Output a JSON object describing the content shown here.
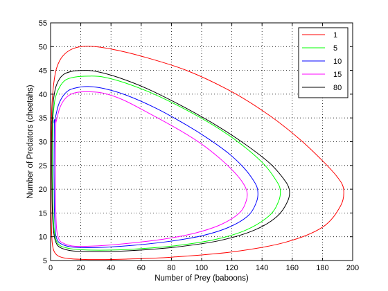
{
  "chart_data": {
    "type": "line",
    "title": "",
    "xlabel": "Number of Prey (baboons)",
    "ylabel": "Number of Predators (cheetahs)",
    "xlim": [
      0,
      200
    ],
    "ylim": [
      5,
      55
    ],
    "xticks": [
      0,
      20,
      40,
      60,
      80,
      100,
      120,
      140,
      160,
      180,
      200
    ],
    "yticks": [
      5,
      10,
      15,
      20,
      25,
      30,
      35,
      40,
      45,
      50,
      55
    ],
    "grid": true,
    "grid_style": "dotted",
    "legend_position": "top-right",
    "series": [
      {
        "name": "1",
        "color": "#ff0000",
        "x": [
          0.3,
          0.8,
          2,
          4,
          8,
          15,
          25,
          40,
          60,
          90,
          120,
          145,
          165,
          180,
          190,
          194,
          192,
          180,
          155,
          120,
          80,
          50,
          30,
          20,
          12,
          7,
          4,
          2,
          1,
          0.5,
          0.3
        ],
        "y": [
          27,
          37,
          42,
          45.5,
          48,
          49.6,
          50.1,
          49.5,
          48,
          45,
          40.5,
          35.5,
          30.5,
          26,
          22.5,
          20,
          16.5,
          12,
          8.8,
          6.8,
          5.7,
          5.3,
          5.2,
          5.25,
          5.4,
          5.7,
          6.2,
          7.2,
          9,
          13,
          18
        ]
      },
      {
        "name": "5",
        "color": "#00ff00",
        "x": [
          1.5,
          3,
          6,
          10,
          16,
          25,
          35,
          50,
          70,
          95,
          115,
          130,
          142,
          149,
          152,
          151,
          145,
          130,
          110,
          85,
          60,
          40,
          25,
          15,
          10,
          7,
          5,
          4,
          3,
          2.2,
          1.6,
          1.3,
          1.2,
          1.5
        ],
        "y": [
          35,
          39,
          41.5,
          43,
          43.6,
          43.8,
          43.6,
          42.3,
          39.8,
          35.8,
          32,
          28.5,
          25,
          22,
          20,
          17.5,
          14.5,
          11.5,
          9.5,
          8.2,
          7.5,
          7.2,
          7.2,
          7.4,
          7.7,
          8,
          8.5,
          9,
          10,
          12,
          16,
          22,
          28,
          35
        ]
      },
      {
        "name": "10",
        "color": "#0000ff",
        "x": [
          2.5,
          5,
          8,
          12,
          18,
          25,
          35,
          50,
          70,
          90,
          105,
          118,
          128,
          134,
          137,
          136.5,
          131,
          118,
          100,
          78,
          55,
          37,
          24,
          15,
          10,
          7,
          5,
          3.5,
          3,
          2.5,
          2.3,
          2.5
        ],
        "y": [
          34,
          37.5,
          39.5,
          40.8,
          41.4,
          41.6,
          41.2,
          39.8,
          37,
          33.5,
          30.5,
          27.5,
          24.5,
          22,
          20,
          17.5,
          14.5,
          12,
          10.2,
          9,
          8.2,
          7.8,
          7.7,
          7.8,
          8.1,
          8.5,
          9,
          10.2,
          12,
          16,
          24,
          34
        ]
      },
      {
        "name": "15",
        "color": "#ff00ff",
        "x": [
          3.5,
          6,
          9,
          13,
          18,
          25,
          35,
          48,
          65,
          85,
          100,
          112,
          121,
          127,
          130,
          129.5,
          125,
          113,
          96,
          75,
          54,
          37,
          25,
          16,
          11,
          8,
          6,
          4.5,
          3.8,
          3.4,
          3.2,
          3.5
        ],
        "y": [
          34,
          37,
          38.8,
          39.9,
          40.4,
          40.5,
          40.2,
          38.8,
          36,
          32.5,
          29.5,
          26.5,
          23.8,
          21.5,
          19.5,
          17.5,
          15,
          12.6,
          10.8,
          9.5,
          8.7,
          8.2,
          8,
          8,
          8.3,
          8.7,
          9.2,
          10.5,
          12.5,
          16.5,
          24,
          34
        ]
      },
      {
        "name": "80",
        "color": "#000000",
        "x": [
          1,
          2,
          4,
          8,
          14,
          22,
          30,
          45,
          65,
          90,
          112,
          130,
          145,
          154,
          158,
          157,
          150,
          135,
          112,
          85,
          60,
          40,
          25,
          15,
          10,
          6,
          4,
          2.5,
          1.5,
          1,
          0.8,
          1
        ],
        "y": [
          34,
          39,
          42,
          44,
          44.8,
          45,
          44.8,
          43.5,
          41,
          37,
          33,
          29.2,
          25.5,
          22.3,
          20,
          17.5,
          14.3,
          11.4,
          9.2,
          7.9,
          7.2,
          6.9,
          6.9,
          7,
          7.3,
          7.8,
          8.5,
          10,
          13,
          18,
          26,
          34
        ]
      }
    ]
  }
}
